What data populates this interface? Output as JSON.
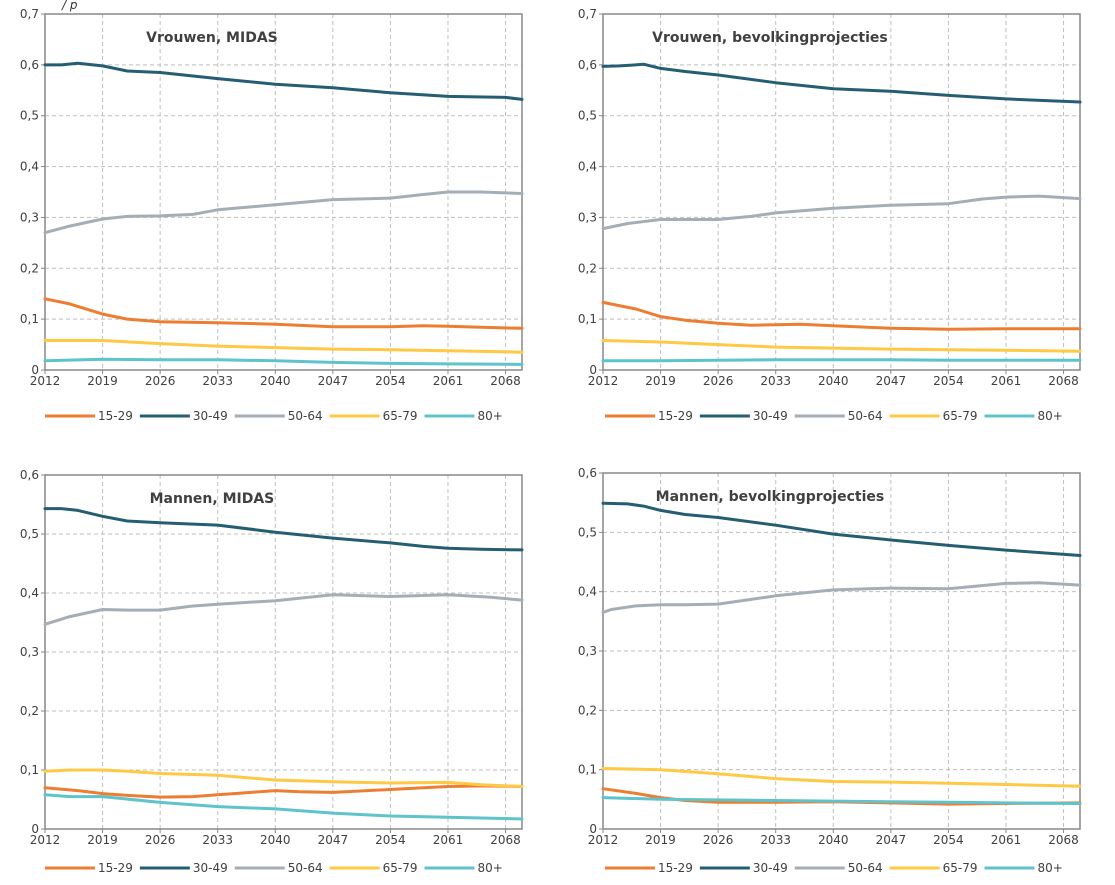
{
  "header": {
    "text": "/ p"
  },
  "colors": {
    "15-29": "#ED7D31",
    "30-49": "#255E73",
    "50-64": "#A5AEB7",
    "65-79": "#FFC845",
    "80+": "#5FC3CC",
    "axis": "#888888",
    "grid": "#BFBFBF"
  },
  "chart_data": [
    {
      "type": "line",
      "title": "Vrouwen, MIDAS",
      "x_ticks": [
        "2012",
        "2019",
        "2026",
        "2033",
        "2040",
        "2047",
        "2054",
        "2061",
        "2068"
      ],
      "x_range": [
        2012,
        2070
      ],
      "ylim": [
        0,
        0.7
      ],
      "y_ticks": [
        "0",
        "0,1",
        "0,2",
        "0,3",
        "0,4",
        "0,5",
        "0,6",
        "0,7"
      ],
      "grid": true,
      "legend_position": "bottom",
      "series": [
        {
          "name": "15-29",
          "x": [
            2012,
            2015,
            2019,
            2022,
            2026,
            2033,
            2040,
            2047,
            2054,
            2058,
            2061,
            2065,
            2070
          ],
          "values": [
            0.14,
            0.13,
            0.11,
            0.1,
            0.095,
            0.093,
            0.09,
            0.085,
            0.085,
            0.087,
            0.086,
            0.084,
            0.082
          ]
        },
        {
          "name": "30-49",
          "x": [
            2012,
            2014,
            2016,
            2019,
            2022,
            2026,
            2033,
            2040,
            2047,
            2054,
            2061,
            2068,
            2070
          ],
          "values": [
            0.6,
            0.6,
            0.603,
            0.598,
            0.588,
            0.585,
            0.573,
            0.562,
            0.555,
            0.545,
            0.538,
            0.536,
            0.532
          ]
        },
        {
          "name": "50-64",
          "x": [
            2012,
            2015,
            2019,
            2022,
            2026,
            2030,
            2033,
            2040,
            2047,
            2054,
            2058,
            2061,
            2065,
            2070
          ],
          "values": [
            0.27,
            0.283,
            0.297,
            0.302,
            0.303,
            0.306,
            0.315,
            0.325,
            0.335,
            0.338,
            0.345,
            0.35,
            0.35,
            0.347
          ]
        },
        {
          "name": "65-79",
          "x": [
            2012,
            2019,
            2026,
            2033,
            2040,
            2047,
            2054,
            2061,
            2070
          ],
          "values": [
            0.058,
            0.058,
            0.052,
            0.047,
            0.044,
            0.041,
            0.04,
            0.038,
            0.035
          ]
        },
        {
          "name": "80+",
          "x": [
            2012,
            2019,
            2026,
            2033,
            2040,
            2047,
            2054,
            2061,
            2070
          ],
          "values": [
            0.018,
            0.021,
            0.02,
            0.02,
            0.018,
            0.015,
            0.013,
            0.012,
            0.011
          ]
        }
      ]
    },
    {
      "type": "line",
      "title": "Vrouwen, bevolkingprojecties",
      "x_ticks": [
        "2012",
        "2019",
        "2026",
        "2033",
        "2040",
        "2047",
        "2054",
        "2061",
        "2068"
      ],
      "x_range": [
        2012,
        2070
      ],
      "ylim": [
        0,
        0.7
      ],
      "y_ticks": [
        "0",
        "0,1",
        "0,2",
        "0,3",
        "0,4",
        "0,5",
        "0,6",
        "0,7"
      ],
      "grid": true,
      "legend_position": "bottom",
      "series": [
        {
          "name": "15-29",
          "x": [
            2012,
            2016,
            2019,
            2022,
            2026,
            2030,
            2036,
            2040,
            2047,
            2054,
            2061,
            2070
          ],
          "values": [
            0.133,
            0.12,
            0.105,
            0.098,
            0.092,
            0.088,
            0.09,
            0.087,
            0.082,
            0.08,
            0.081,
            0.081
          ]
        },
        {
          "name": "30-49",
          "x": [
            2012,
            2014,
            2017,
            2019,
            2022,
            2026,
            2033,
            2040,
            2047,
            2054,
            2061,
            2070
          ],
          "values": [
            0.597,
            0.598,
            0.601,
            0.593,
            0.587,
            0.58,
            0.565,
            0.553,
            0.548,
            0.54,
            0.533,
            0.527
          ]
        },
        {
          "name": "50-64",
          "x": [
            2012,
            2015,
            2019,
            2022,
            2026,
            2030,
            2033,
            2040,
            2047,
            2054,
            2058,
            2061,
            2065,
            2070
          ],
          "values": [
            0.278,
            0.288,
            0.296,
            0.296,
            0.296,
            0.302,
            0.309,
            0.318,
            0.324,
            0.327,
            0.336,
            0.34,
            0.342,
            0.337
          ]
        },
        {
          "name": "65-79",
          "x": [
            2012,
            2019,
            2026,
            2033,
            2040,
            2047,
            2054,
            2061,
            2070
          ],
          "values": [
            0.058,
            0.055,
            0.05,
            0.045,
            0.043,
            0.041,
            0.04,
            0.039,
            0.037
          ]
        },
        {
          "name": "80+",
          "x": [
            2012,
            2019,
            2026,
            2033,
            2040,
            2047,
            2054,
            2061,
            2070
          ],
          "values": [
            0.018,
            0.018,
            0.019,
            0.02,
            0.02,
            0.02,
            0.019,
            0.019,
            0.019
          ]
        }
      ]
    },
    {
      "type": "line",
      "title": "Mannen, MIDAS",
      "x_ticks": [
        "2012",
        "2019",
        "2026",
        "2033",
        "2040",
        "2047",
        "2054",
        "2061",
        "2068"
      ],
      "x_range": [
        2012,
        2070
      ],
      "ylim": [
        0,
        0.6
      ],
      "y_ticks": [
        "0",
        "0,1",
        "0,2",
        "0,3",
        "0,4",
        "0,5",
        "0,6"
      ],
      "grid": true,
      "legend_position": "bottom",
      "series": [
        {
          "name": "15-29",
          "x": [
            2012,
            2016,
            2019,
            2022,
            2026,
            2030,
            2033,
            2040,
            2043,
            2047,
            2054,
            2058,
            2061,
            2065,
            2070
          ],
          "values": [
            0.07,
            0.065,
            0.06,
            0.057,
            0.054,
            0.055,
            0.058,
            0.065,
            0.063,
            0.062,
            0.067,
            0.07,
            0.072,
            0.073,
            0.072
          ]
        },
        {
          "name": "30-49",
          "x": [
            2012,
            2014,
            2016,
            2019,
            2022,
            2026,
            2033,
            2040,
            2047,
            2054,
            2058,
            2061,
            2065,
            2070
          ],
          "values": [
            0.543,
            0.543,
            0.54,
            0.53,
            0.522,
            0.519,
            0.515,
            0.503,
            0.493,
            0.485,
            0.479,
            0.476,
            0.474,
            0.473
          ]
        },
        {
          "name": "50-64",
          "x": [
            2012,
            2015,
            2019,
            2022,
            2026,
            2030,
            2033,
            2040,
            2047,
            2054,
            2061,
            2066,
            2070
          ],
          "values": [
            0.347,
            0.36,
            0.372,
            0.371,
            0.371,
            0.378,
            0.381,
            0.387,
            0.397,
            0.394,
            0.397,
            0.393,
            0.388
          ]
        },
        {
          "name": "65-79",
          "x": [
            2012,
            2015,
            2019,
            2022,
            2026,
            2033,
            2040,
            2047,
            2054,
            2061,
            2065,
            2070
          ],
          "values": [
            0.098,
            0.1,
            0.1,
            0.098,
            0.094,
            0.091,
            0.083,
            0.08,
            0.078,
            0.079,
            0.075,
            0.072
          ]
        },
        {
          "name": "80+",
          "x": [
            2012,
            2015,
            2019,
            2026,
            2033,
            2040,
            2047,
            2054,
            2061,
            2070
          ],
          "values": [
            0.058,
            0.055,
            0.055,
            0.045,
            0.038,
            0.034,
            0.027,
            0.022,
            0.02,
            0.017
          ]
        }
      ]
    },
    {
      "type": "line",
      "title": "Mannen, bevolkingprojecties",
      "x_ticks": [
        "2012",
        "2019",
        "2026",
        "2033",
        "2040",
        "2047",
        "2054",
        "2061",
        "2068"
      ],
      "x_range": [
        2012,
        2070
      ],
      "ylim": [
        0,
        0.6
      ],
      "y_ticks": [
        "0",
        "0,1",
        "0,2",
        "0,3",
        "0,4",
        "0,5",
        "0,6"
      ],
      "grid": true,
      "legend_position": "bottom",
      "series": [
        {
          "name": "15-29",
          "x": [
            2012,
            2016,
            2019,
            2022,
            2026,
            2033,
            2040,
            2047,
            2054,
            2061,
            2070
          ],
          "values": [
            0.068,
            0.06,
            0.053,
            0.048,
            0.045,
            0.045,
            0.046,
            0.044,
            0.042,
            0.043,
            0.044
          ]
        },
        {
          "name": "30-49",
          "x": [
            2012,
            2015,
            2017,
            2019,
            2022,
            2026,
            2033,
            2040,
            2047,
            2054,
            2061,
            2070
          ],
          "values": [
            0.549,
            0.548,
            0.544,
            0.537,
            0.53,
            0.525,
            0.512,
            0.497,
            0.487,
            0.478,
            0.47,
            0.461
          ]
        },
        {
          "name": "50-64",
          "x": [
            2012,
            2013,
            2016,
            2019,
            2022,
            2026,
            2030,
            2033,
            2040,
            2047,
            2054,
            2061,
            2065,
            2070
          ],
          "values": [
            0.365,
            0.37,
            0.376,
            0.378,
            0.378,
            0.379,
            0.387,
            0.393,
            0.403,
            0.406,
            0.405,
            0.414,
            0.415,
            0.411
          ]
        },
        {
          "name": "65-79",
          "x": [
            2012,
            2019,
            2026,
            2033,
            2040,
            2047,
            2054,
            2061,
            2070
          ],
          "values": [
            0.102,
            0.1,
            0.093,
            0.085,
            0.08,
            0.079,
            0.077,
            0.075,
            0.072
          ]
        },
        {
          "name": "80+",
          "x": [
            2012,
            2019,
            2026,
            2033,
            2040,
            2047,
            2054,
            2061,
            2070
          ],
          "values": [
            0.053,
            0.05,
            0.049,
            0.048,
            0.047,
            0.046,
            0.045,
            0.044,
            0.043
          ]
        }
      ]
    }
  ]
}
